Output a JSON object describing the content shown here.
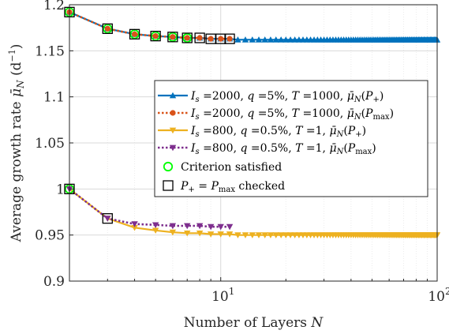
{
  "chart_data": {
    "type": "line",
    "xscale": "log",
    "xlim": [
      2,
      100
    ],
    "ylim": [
      0.9,
      1.2
    ],
    "xlabel": "Number of Layers N",
    "ylabel": "Average growth rate μ̄_N (d⁻¹)",
    "grid": true,
    "legend_position": "upper-right",
    "x_ticks": [
      {
        "value": 10,
        "label": "10",
        "sup": "1"
      },
      {
        "value": 100,
        "label": "10",
        "sup": "2"
      }
    ],
    "y_ticks": [
      {
        "value": 0.9,
        "label": "0.9"
      },
      {
        "value": 0.95,
        "label": "0.95"
      },
      {
        "value": 1.0,
        "label": "1"
      },
      {
        "value": 1.05,
        "label": "1.05"
      },
      {
        "value": 1.1,
        "label": "1.1"
      },
      {
        "value": 1.15,
        "label": "1.15"
      },
      {
        "value": 1.2,
        "label": "1.2"
      }
    ],
    "series": [
      {
        "name": "I_s =2000, q =5%, T =1000, μ̄_N(P_+)",
        "color": "#0072BD",
        "dash": "solid",
        "marker": "triangle-up",
        "x_range": [
          2,
          100
        ],
        "values_first": [
          1.192,
          1.174,
          1.168,
          1.166,
          1.165,
          1.164,
          1.164,
          1.163,
          1.163,
          1.163
        ],
        "plateau": 1.162
      },
      {
        "name": "I_s =2000, q =5%, T =1000, μ̄_N(P_max)",
        "color": "#D95319",
        "dash": "dotted",
        "marker": "circle",
        "x": [
          2,
          3,
          4,
          5,
          6,
          7,
          8,
          9,
          10,
          11
        ],
        "values": [
          1.192,
          1.174,
          1.168,
          1.166,
          1.165,
          1.164,
          1.164,
          1.163,
          1.163,
          1.163
        ]
      },
      {
        "name": "I_s =800, q =0.5%, T =1, μ̄_N(P_+)",
        "color": "#EDB120",
        "dash": "solid",
        "marker": "triangle-down",
        "x_range": [
          2,
          100
        ],
        "values_first": [
          1.0,
          0.968,
          0.958,
          0.955,
          0.953,
          0.952,
          0.952,
          0.951,
          0.951,
          0.951
        ],
        "plateau": 0.95
      },
      {
        "name": "I_s =800, q =0.5%, T =1, μ̄_N(P_max)",
        "color": "#7E2F8E",
        "dash": "dotted",
        "marker": "triangle-down",
        "x": [
          2,
          3,
          4,
          5,
          6,
          7,
          8,
          9,
          10,
          11
        ],
        "values": [
          1.0,
          0.968,
          0.962,
          0.961,
          0.96,
          0.96,
          0.96,
          0.959,
          0.959,
          0.959
        ]
      }
    ],
    "criterion_satisfied": {
      "name": "Criterion satisfied",
      "color": "#00FF00",
      "points": [
        {
          "x": 2,
          "y": 1.192
        },
        {
          "x": 3,
          "y": 1.174
        },
        {
          "x": 4,
          "y": 1.168
        },
        {
          "x": 5,
          "y": 1.166
        },
        {
          "x": 6,
          "y": 1.165
        },
        {
          "x": 7,
          "y": 1.164
        },
        {
          "x": 2,
          "y": 1.0
        }
      ]
    },
    "checked": {
      "name": "P_+ = P_max checked",
      "color": "#000000",
      "points": [
        {
          "x": 2,
          "y": 1.192
        },
        {
          "x": 3,
          "y": 1.174
        },
        {
          "x": 4,
          "y": 1.168
        },
        {
          "x": 5,
          "y": 1.166
        },
        {
          "x": 6,
          "y": 1.165
        },
        {
          "x": 7,
          "y": 1.164
        },
        {
          "x": 8,
          "y": 1.164
        },
        {
          "x": 9,
          "y": 1.163
        },
        {
          "x": 10,
          "y": 1.163
        },
        {
          "x": 11,
          "y": 1.163
        },
        {
          "x": 2,
          "y": 1.0
        },
        {
          "x": 3,
          "y": 0.968
        }
      ]
    }
  }
}
